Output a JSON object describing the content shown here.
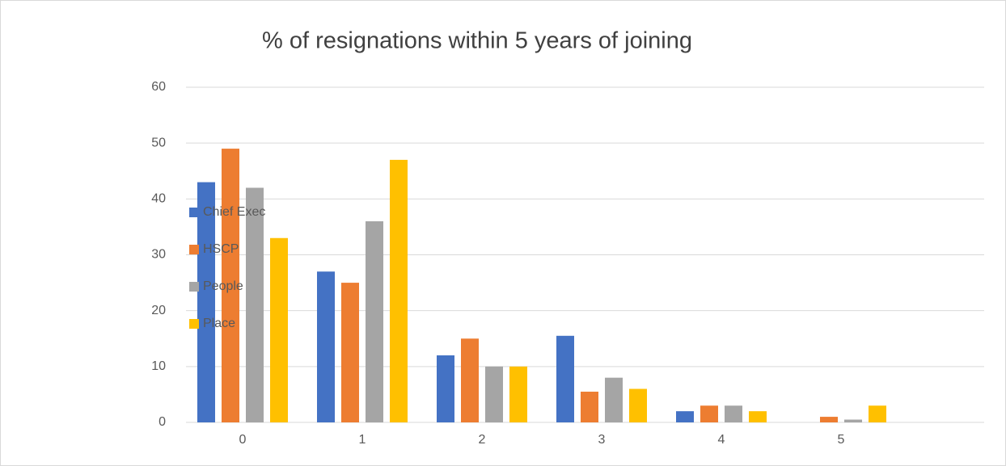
{
  "chart_data": {
    "type": "bar",
    "title": "% of resignations within 5 years of joining",
    "categories": [
      "0",
      "1",
      "2",
      "3",
      "4",
      "5"
    ],
    "series": [
      {
        "name": "Chief Exec",
        "color": "#4472c4",
        "values": [
          43,
          27,
          12,
          15.5,
          2,
          0
        ]
      },
      {
        "name": "HSCP",
        "color": "#ed7d31",
        "values": [
          49,
          25,
          15,
          5.5,
          3,
          1
        ]
      },
      {
        "name": "People",
        "color": "#a5a5a5",
        "values": [
          42,
          36,
          10,
          8,
          3,
          0.5
        ]
      },
      {
        "name": "Place",
        "color": "#ffc000",
        "values": [
          33,
          47,
          10,
          6,
          2,
          3
        ]
      }
    ],
    "ylim": [
      0,
      60
    ],
    "yticks": [
      0,
      10,
      20,
      30,
      40,
      50,
      60
    ],
    "grid": true,
    "legend": "left"
  }
}
